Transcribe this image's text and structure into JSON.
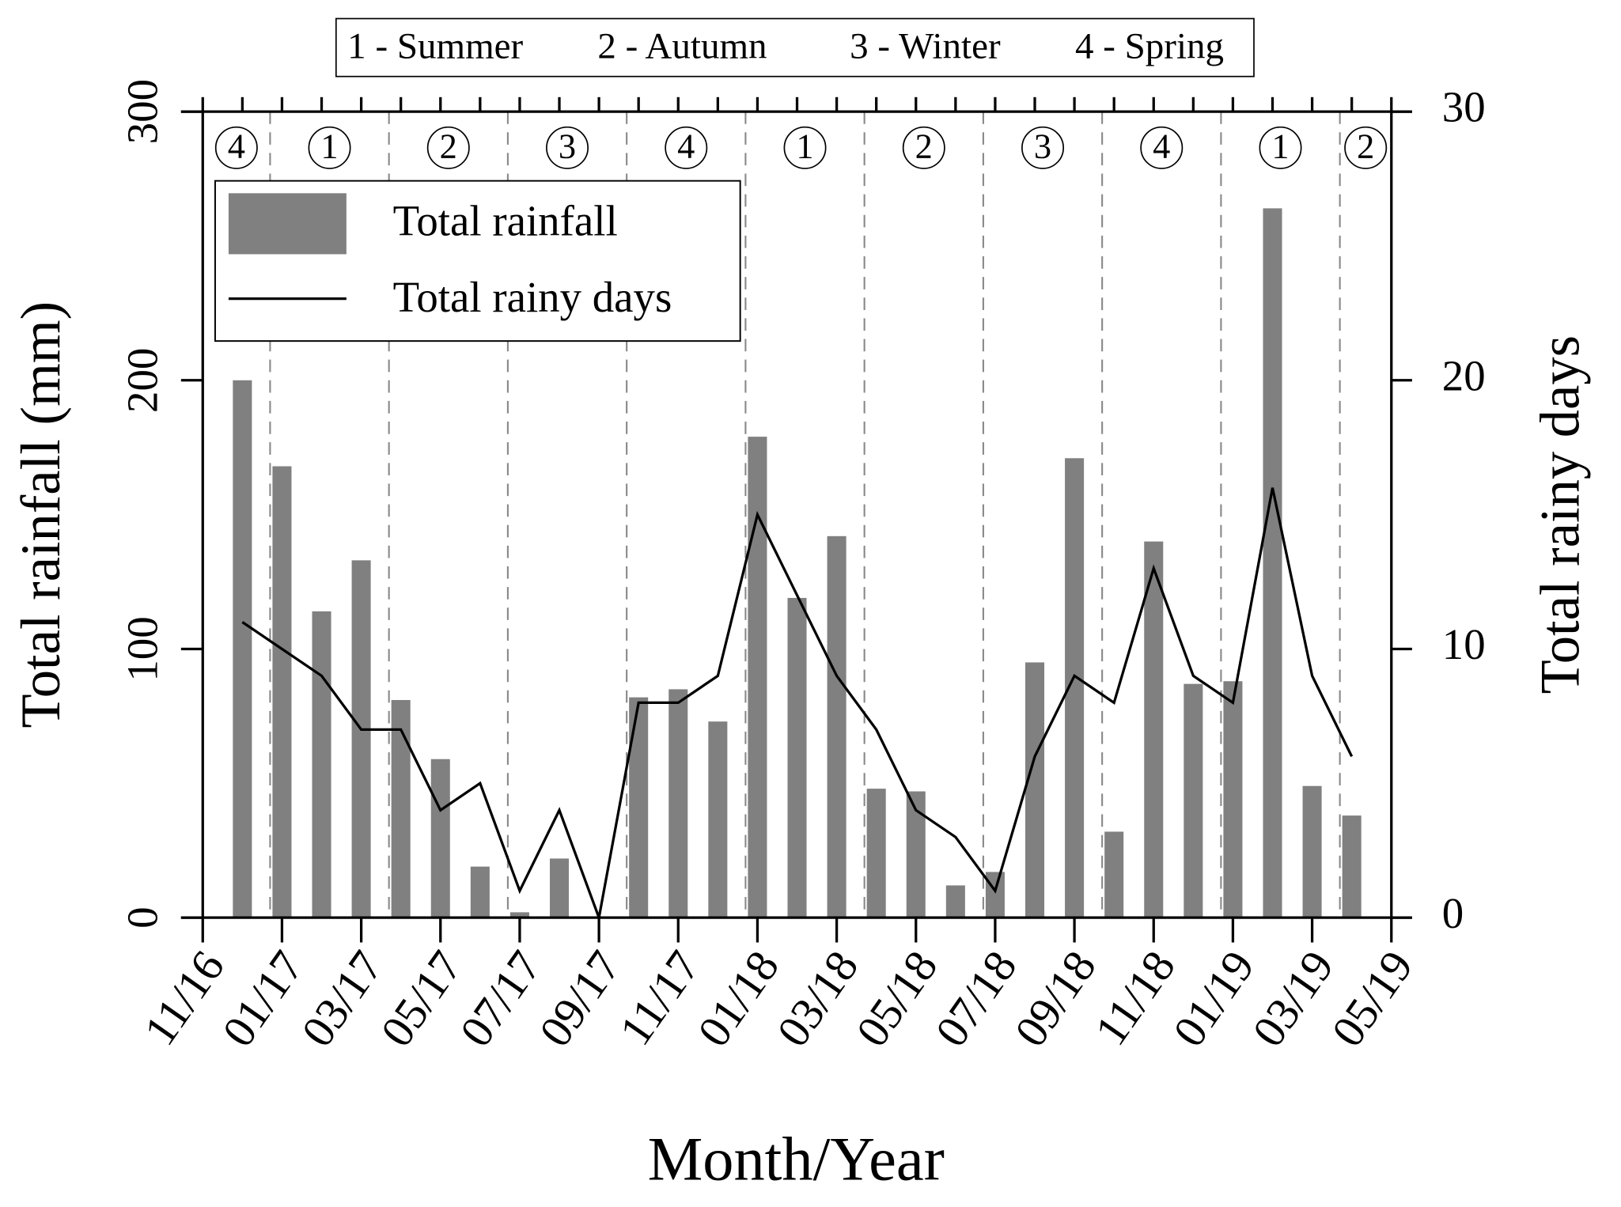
{
  "chart_data": {
    "type": "bar",
    "xlabel": "Month/Year",
    "ylabel": "Total rainfall  (mm)",
    "y2label": "Total rainy days",
    "legend": "upper left",
    "x": [
      "12/16",
      "01/17",
      "02/17",
      "03/17",
      "04/17",
      "05/17",
      "06/17",
      "07/17",
      "08/17",
      "09/17",
      "10/17",
      "11/17",
      "12/17",
      "01/18",
      "02/18",
      "03/18",
      "04/18",
      "05/18",
      "06/18",
      "07/18",
      "08/18",
      "09/18",
      "10/18",
      "11/18",
      "12/18",
      "01/19",
      "02/19",
      "03/19",
      "04/19"
    ],
    "series": [
      {
        "name": "Total rainfall",
        "color": "#808080",
        "values": [
          200,
          168,
          114,
          133,
          81,
          59,
          19,
          2,
          22,
          0,
          82,
          85,
          73,
          179,
          119,
          142,
          48,
          47,
          12,
          17,
          95,
          171,
          32,
          140,
          87,
          88,
          264,
          49,
          38
        ]
      },
      {
        "name": "Total rainy days",
        "color": "#000000",
        "type": "line",
        "axis": "y2",
        "values": [
          11,
          10,
          9,
          7,
          7,
          4,
          5,
          1,
          4,
          0,
          8,
          8,
          9,
          15,
          12,
          9,
          7,
          4,
          3,
          1,
          6,
          9,
          8,
          13,
          9,
          8,
          16,
          9,
          6
        ]
      }
    ],
    "xlim": [
      "11/16",
      "05/19"
    ],
    "xticks": [
      "11/16",
      "01/17",
      "03/17",
      "05/17",
      "07/17",
      "09/17",
      "11/17",
      "01/18",
      "03/18",
      "05/18",
      "07/18",
      "09/18",
      "11/18",
      "01/19",
      "03/19",
      "05/19"
    ],
    "ylim": [
      0,
      300
    ],
    "yticks": [
      0,
      100,
      200,
      300
    ],
    "y2lim": [
      0,
      30
    ],
    "y2ticks": [
      0,
      10,
      20,
      30
    ],
    "seasons": {
      "legend": [
        "1 - Summer",
        "2 - Autumn",
        "3 - Winter",
        "4 - Spring"
      ],
      "labels": [
        "4",
        "1",
        "2",
        "3",
        "4",
        "1",
        "2",
        "3",
        "4",
        "1",
        "2"
      ],
      "starts": [
        "01/17",
        "04/17",
        "07/17",
        "10/17",
        "01/18",
        "04/18",
        "07/18",
        "10/18",
        "01/19",
        "04/19"
      ]
    }
  }
}
